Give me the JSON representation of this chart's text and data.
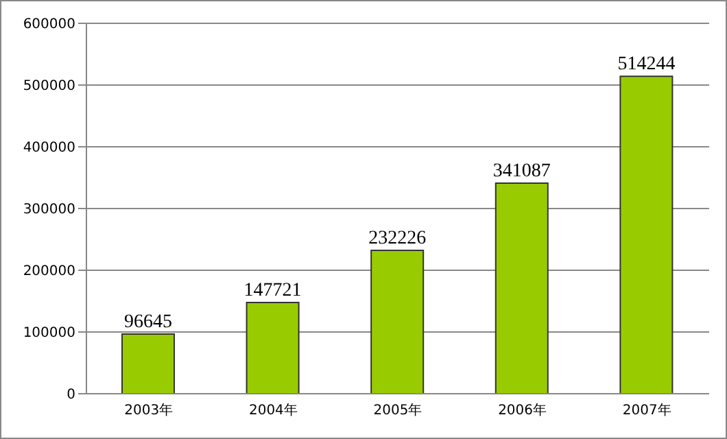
{
  "chart_data": {
    "type": "bar",
    "categories": [
      "2003年",
      "2004年",
      "2005年",
      "2006年",
      "2007年"
    ],
    "values": [
      96645,
      147721,
      232226,
      341087,
      514244
    ],
    "color": "#99cc00",
    "ylim": [
      0,
      600000
    ],
    "yticks": [
      0,
      100000,
      200000,
      300000,
      400000,
      500000,
      600000
    ],
    "grid": "y",
    "data_labels": true
  }
}
